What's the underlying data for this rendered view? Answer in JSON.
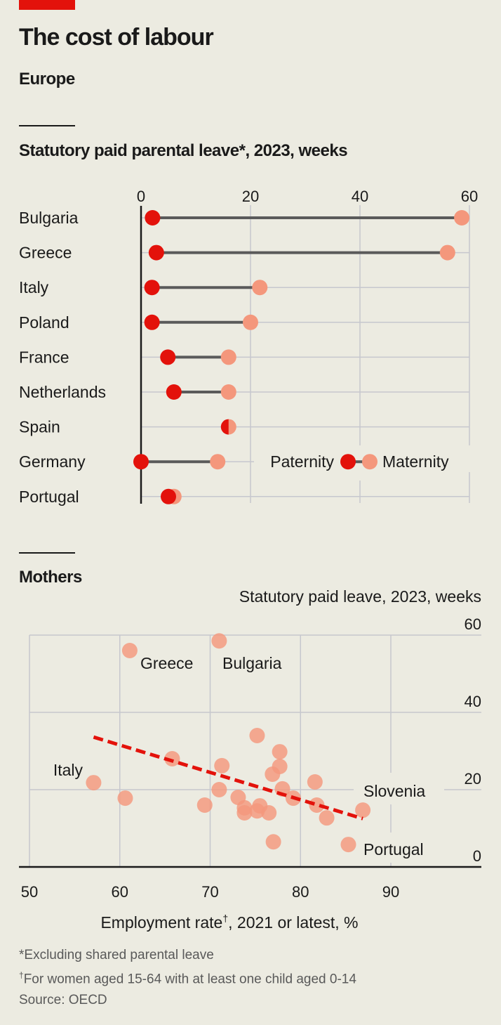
{
  "header": {
    "title": "The cost of labour",
    "subtitle": "Europe"
  },
  "colors": {
    "accent": "#e3120b",
    "paternity": "#e3120b",
    "maternity": "#f4977c",
    "grid": "#c6c7ce",
    "trend": "#e3120b"
  },
  "chart_data": [
    {
      "type": "dumbbell",
      "title": "Statutory paid parental leave*, 2023, weeks",
      "xlim": [
        0,
        60
      ],
      "xticks": [
        "0",
        "20",
        "40",
        "60"
      ],
      "xtick_values": [
        0,
        20,
        40,
        60
      ],
      "grid": true,
      "legend": {
        "placement": "bottom-right",
        "paternity_label": "Paternity",
        "maternity_label": "Maternity"
      },
      "categories": [
        "Bulgaria",
        "Greece",
        "Italy",
        "Poland",
        "France",
        "Netherlands",
        "Spain",
        "Germany",
        "Portugal"
      ],
      "series": [
        {
          "name": "Paternity",
          "values": [
            2.1,
            2.8,
            2,
            2,
            4.9,
            6,
            16,
            0,
            5
          ]
        },
        {
          "name": "Maternity",
          "values": [
            58.6,
            56,
            21.7,
            20,
            16,
            16,
            16,
            14,
            6
          ]
        }
      ]
    },
    {
      "type": "scatter",
      "title": "Mothers",
      "ylabel": "Statutory paid leave, 2023, weeks",
      "xlabel_main": "Employment rate",
      "xlabel_mark": "†",
      "xlabel_rest": ", 2021 or latest, %",
      "xlim": [
        50,
        98
      ],
      "ylim": [
        0,
        60
      ],
      "xticks": [
        "50",
        "60",
        "70",
        "80",
        "90"
      ],
      "xtick_values": [
        50,
        60,
        70,
        80,
        90
      ],
      "yticks": [
        "0",
        "20",
        "40",
        "60"
      ],
      "ytick_values": [
        0,
        20,
        40,
        60
      ],
      "grid": true,
      "points": [
        {
          "x": 61.1,
          "y": 56,
          "label": "Greece"
        },
        {
          "x": 71.0,
          "y": 58.5,
          "label": "Bulgaria"
        },
        {
          "x": 57.1,
          "y": 21.8,
          "label": "Italy"
        },
        {
          "x": 60.6,
          "y": 17.8
        },
        {
          "x": 65.8,
          "y": 28
        },
        {
          "x": 69.4,
          "y": 16
        },
        {
          "x": 71.3,
          "y": 26.2
        },
        {
          "x": 71.0,
          "y": 20
        },
        {
          "x": 75.2,
          "y": 34
        },
        {
          "x": 73.1,
          "y": 18
        },
        {
          "x": 73.8,
          "y": 15.3
        },
        {
          "x": 73.8,
          "y": 14
        },
        {
          "x": 75.2,
          "y": 14.5
        },
        {
          "x": 75.5,
          "y": 15.8
        },
        {
          "x": 76.5,
          "y": 14
        },
        {
          "x": 77.7,
          "y": 29.8
        },
        {
          "x": 77.7,
          "y": 26
        },
        {
          "x": 76.9,
          "y": 24
        },
        {
          "x": 78.0,
          "y": 20.2
        },
        {
          "x": 79.2,
          "y": 17.8
        },
        {
          "x": 77.0,
          "y": 6.5
        },
        {
          "x": 81.6,
          "y": 22
        },
        {
          "x": 81.8,
          "y": 16
        },
        {
          "x": 82.9,
          "y": 12.7
        },
        {
          "x": 86.9,
          "y": 14.7,
          "label": "Slovenia"
        },
        {
          "x": 85.3,
          "y": 5.8,
          "label": "Portugal"
        }
      ],
      "trendline": {
        "x": [
          57.1,
          86.9
        ],
        "y": [
          33.6,
          12.5
        ]
      }
    }
  ],
  "footnotes": {
    "note1": "*Excluding shared parental leave",
    "note2_mark": "†",
    "note2": "For women aged 15-64 with at least one child aged 0-14",
    "source": "Source: OECD"
  }
}
